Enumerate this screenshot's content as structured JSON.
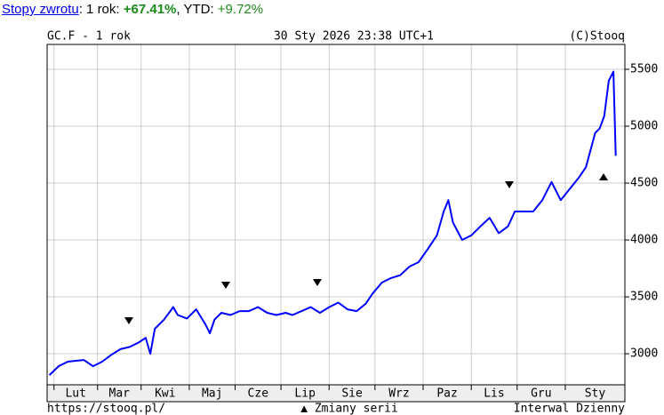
{
  "returns": {
    "link": "Stopy zwrotu",
    "year_label": ": 1 rok:",
    "year_value": "+67.41%",
    "ytd_label": ", YTD:",
    "ytd_value": "+9.72%"
  },
  "chart_data": {
    "type": "line",
    "symbol": "GC.F - 1 rok",
    "timestamp": "30 Sty 2026 23:38 UTC+1",
    "copyright": "(C)Stooq",
    "footer_url": "https://stooq.pl/",
    "legend": "▲ Zmiany serii",
    "interval": "Interwal Dzienny",
    "month_labels": [
      "Lut",
      "Mar",
      "Kwi",
      "Maj",
      "Cze",
      "Lip",
      "Sie",
      "Wrz",
      "Paz",
      "Lis",
      "Gru",
      "Sty"
    ],
    "xlim": [
      0,
      252
    ],
    "xticks": [
      3,
      22,
      41,
      62,
      82,
      102,
      123,
      143,
      164,
      185,
      205,
      226
    ],
    "ylim": [
      2727,
      5719
    ],
    "yticks": [
      3000,
      3500,
      4000,
      4500,
      5000,
      5500
    ],
    "grid": true,
    "series": [
      {
        "name": "GC.F",
        "color": "#0000ff",
        "x": [
          1,
          5,
          9,
          12,
          16,
          20,
          24,
          28,
          32,
          36,
          40,
          43,
          45,
          47,
          51,
          55,
          57,
          61,
          65,
          69,
          71,
          73,
          76,
          80,
          84,
          88,
          92,
          96,
          100,
          104,
          107,
          111,
          115,
          119,
          123,
          127,
          131,
          135,
          139,
          142,
          146,
          150,
          154,
          158,
          162,
          166,
          170,
          173,
          175,
          177,
          181,
          185,
          189,
          193,
          197,
          201,
          204,
          208,
          212,
          216,
          220,
          224,
          228,
          232,
          235,
          239,
          241,
          243,
          245,
          247,
          248
        ],
        "values": [
          2812,
          2890,
          2930,
          2937,
          2945,
          2890,
          2930,
          2990,
          3040,
          3060,
          3100,
          3140,
          3000,
          3220,
          3300,
          3410,
          3340,
          3310,
          3390,
          3260,
          3180,
          3300,
          3360,
          3340,
          3375,
          3375,
          3410,
          3360,
          3340,
          3360,
          3340,
          3375,
          3410,
          3360,
          3410,
          3450,
          3390,
          3375,
          3440,
          3530,
          3625,
          3665,
          3690,
          3765,
          3805,
          3920,
          4040,
          4250,
          4350,
          4155,
          4000,
          4040,
          4120,
          4195,
          4060,
          4120,
          4250,
          4250,
          4250,
          4350,
          4510,
          4350,
          4450,
          4550,
          4640,
          4940,
          4980,
          5090,
          5400,
          5480,
          4740
        ]
      }
    ]
  }
}
